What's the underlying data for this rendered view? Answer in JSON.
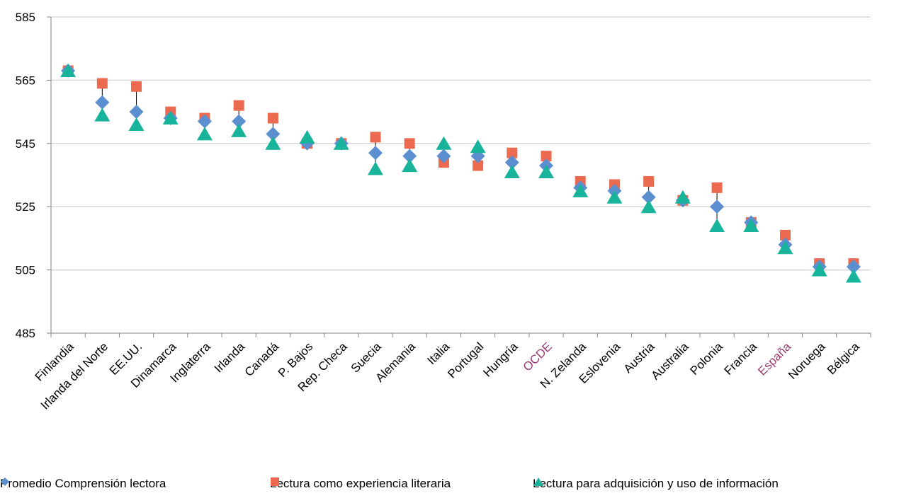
{
  "chart_data": {
    "type": "scatter",
    "categories": [
      "Finlandia",
      "Irlanda del Norte",
      "EE.UU.",
      "Dinamarca",
      "Inglaterra",
      "Irlanda",
      "Canadá",
      "P. Bajos",
      "Rep. Checa",
      "Suecia",
      "Alemania",
      "Italia",
      "Portugal",
      "Hungría",
      "OCDE",
      "N. Zelanda",
      "Eslovenia",
      "Austria",
      "Australia",
      "Polonia",
      "Francia",
      "España",
      "Noruega",
      "Bélgica"
    ],
    "highlighted_categories": [
      "OCDE",
      "España"
    ],
    "series": [
      {
        "name": "Promedio Comprensión lectora",
        "marker": "diamond",
        "color": "#5b8fd0",
        "values": [
          568,
          558,
          555,
          553,
          552,
          552,
          548,
          545,
          545,
          542,
          541,
          541,
          541,
          539,
          538,
          531,
          530,
          528,
          527,
          525,
          520,
          513,
          506,
          506
        ]
      },
      {
        "name": "Lectura como experiencia literaria",
        "marker": "square",
        "color": "#ec6a4f",
        "values": [
          568,
          564,
          563,
          555,
          553,
          557,
          553,
          545,
          545,
          547,
          545,
          539,
          538,
          542,
          541,
          533,
          532,
          533,
          527,
          531,
          520,
          516,
          507,
          507
        ]
      },
      {
        "name": "Lectura para adquisición y uso de información",
        "marker": "triangle",
        "color": "#17b39b",
        "values": [
          568,
          554,
          551,
          553,
          548,
          549,
          545,
          547,
          545,
          537,
          538,
          545,
          544,
          536,
          536,
          530,
          528,
          525,
          528,
          519,
          519,
          512,
          505,
          503
        ]
      }
    ],
    "y_ticks": [
      "485",
      "505",
      "525",
      "545",
      "565",
      "585"
    ],
    "ylim": [
      485,
      585
    ],
    "grid": true,
    "legend_position": "bottom",
    "colors": {
      "highlight_label": "#9b3b74",
      "grid": "#d9d9d9",
      "axis": "#868686",
      "drop_line": "#000000"
    }
  }
}
